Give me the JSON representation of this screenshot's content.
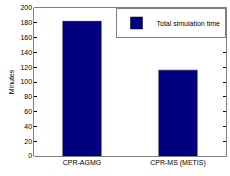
{
  "chart_data": {
    "type": "bar",
    "categories": [
      "CPR-AGMG",
      "CPR-MS (METIS)"
    ],
    "series": [
      {
        "name": "Total simulation time",
        "color": "#000080",
        "values": [
          182,
          116
        ]
      }
    ],
    "y_label": "Minutes",
    "ylim": [
      0,
      200
    ],
    "yticks": [
      0,
      20,
      40,
      60,
      80,
      100,
      120,
      140,
      160,
      180,
      200
    ],
    "grid": false,
    "legend": "upper right"
  }
}
